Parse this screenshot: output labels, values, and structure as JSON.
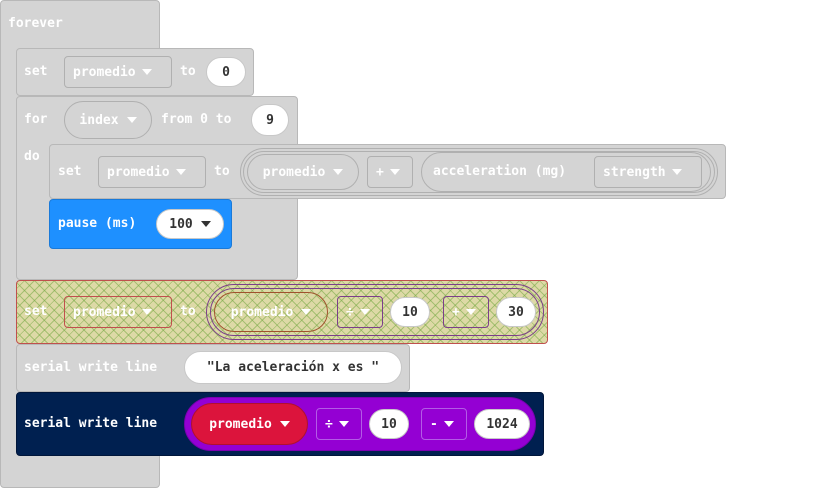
{
  "forever": {
    "label": "forever"
  },
  "set1": {
    "set_label": "set",
    "variable": "promedio",
    "to_label": "to",
    "value": "0"
  },
  "for_loop": {
    "for_label": "for",
    "variable": "index",
    "from_label": "from 0 to",
    "to_value": "9",
    "do_label": "do"
  },
  "set2": {
    "set_label": "set",
    "variable": "promedio",
    "to_label": "to",
    "operand_var": "promedio",
    "operator": "+",
    "sensor_label": "acceleration (mg)",
    "sensor_option": "strength"
  },
  "pause": {
    "label": "pause (ms)",
    "value": "100"
  },
  "set3": {
    "set_label": "set",
    "variable": "promedio",
    "to_label": "to",
    "operand_var": "promedio",
    "op1": "÷",
    "val1": "10",
    "op2": "+",
    "val2": "30"
  },
  "serial1": {
    "label": "serial write line",
    "text": "\"La aceleración x es \""
  },
  "serial2": {
    "label": "serial write line",
    "variable": "promedio",
    "op1": "÷",
    "val1": "10",
    "op2": "-",
    "val2": "1024"
  },
  "colors": {
    "control": "#d4d4d4",
    "pause": "#1e90ff",
    "serial": "#002050",
    "variable": "#dc143c",
    "math": "#9400d3",
    "hatch": "#ddd9a6"
  }
}
